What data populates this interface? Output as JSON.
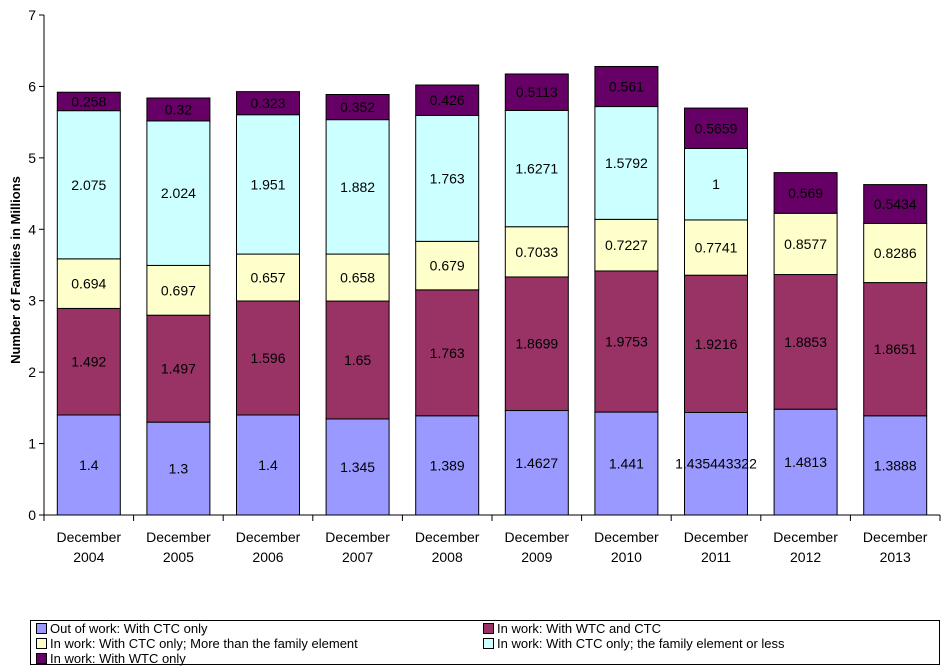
{
  "chart_data": {
    "type": "bar",
    "stacked": true,
    "categories": [
      [
        "December",
        "2004"
      ],
      [
        "December",
        "2005"
      ],
      [
        "December",
        "2006"
      ],
      [
        "December",
        "2007"
      ],
      [
        "December",
        "2008"
      ],
      [
        "December",
        "2009"
      ],
      [
        "December",
        "2010"
      ],
      [
        "December",
        "2011"
      ],
      [
        "December",
        "2012"
      ],
      [
        "December",
        "2013"
      ]
    ],
    "ylabel": "Number of Families in Millions",
    "ylim": [
      0,
      7
    ],
    "yticks": [
      "0",
      "1",
      "2",
      "3",
      "4",
      "5",
      "6",
      "7"
    ],
    "grid": false,
    "legend_position": "bottom",
    "series": [
      {
        "name": "Out of work: With CTC only",
        "color": "#9999ff",
        "values": [
          1.4,
          1.3,
          1.4,
          1.345,
          1.389,
          1.4627,
          1.441,
          1.435443322,
          1.4813,
          1.3888
        ],
        "labels": [
          "1.4",
          "1.3",
          "1.4",
          "1.345",
          "1.389",
          "1.4627",
          "1.441",
          "1.435443322",
          "1.4813",
          "1.3888"
        ]
      },
      {
        "name": "In work: With WTC and CTC",
        "color": "#993366",
        "values": [
          1.492,
          1.497,
          1.596,
          1.65,
          1.763,
          1.8699,
          1.9753,
          1.9216,
          1.8853,
          1.8651
        ],
        "labels": [
          "1.492",
          "1.497",
          "1.596",
          "1.65",
          "1.763",
          "1.8699",
          "1.9753",
          "1.9216",
          "1.8853",
          "1.8651"
        ]
      },
      {
        "name": "In work: With CTC only; More than the family element",
        "color": "#ffffcc",
        "values": [
          0.694,
          0.697,
          0.657,
          0.658,
          0.679,
          0.7033,
          0.7227,
          0.7741,
          0.8577,
          0.8286
        ],
        "labels": [
          "0.694",
          "0.697",
          "0.657",
          "0.658",
          "0.679",
          "0.7033",
          "0.7227",
          "0.7741",
          "0.8577",
          "0.8286"
        ]
      },
      {
        "name": "In work: With CTC only; the family element or less",
        "color": "#ccffff",
        "values": [
          2.075,
          2.024,
          1.951,
          1.882,
          1.763,
          1.6271,
          1.5792,
          1,
          0,
          0
        ],
        "labels": [
          "2.075",
          "2.024",
          "1.951",
          "1.882",
          "1.763",
          "1.6271",
          "1.5792",
          "1",
          "",
          ""
        ]
      },
      {
        "name": "In work: With WTC only",
        "color": "#660066",
        "values": [
          0.258,
          0.32,
          0.323,
          0.352,
          0.426,
          0.5113,
          0.561,
          0.5659,
          0.569,
          0.5434
        ],
        "labels": [
          "0.258",
          "0.32",
          "0.323",
          "0.352",
          "0.426",
          "0.5113",
          "0.561",
          "0.5659",
          "0.569",
          "0.5434"
        ]
      }
    ]
  }
}
